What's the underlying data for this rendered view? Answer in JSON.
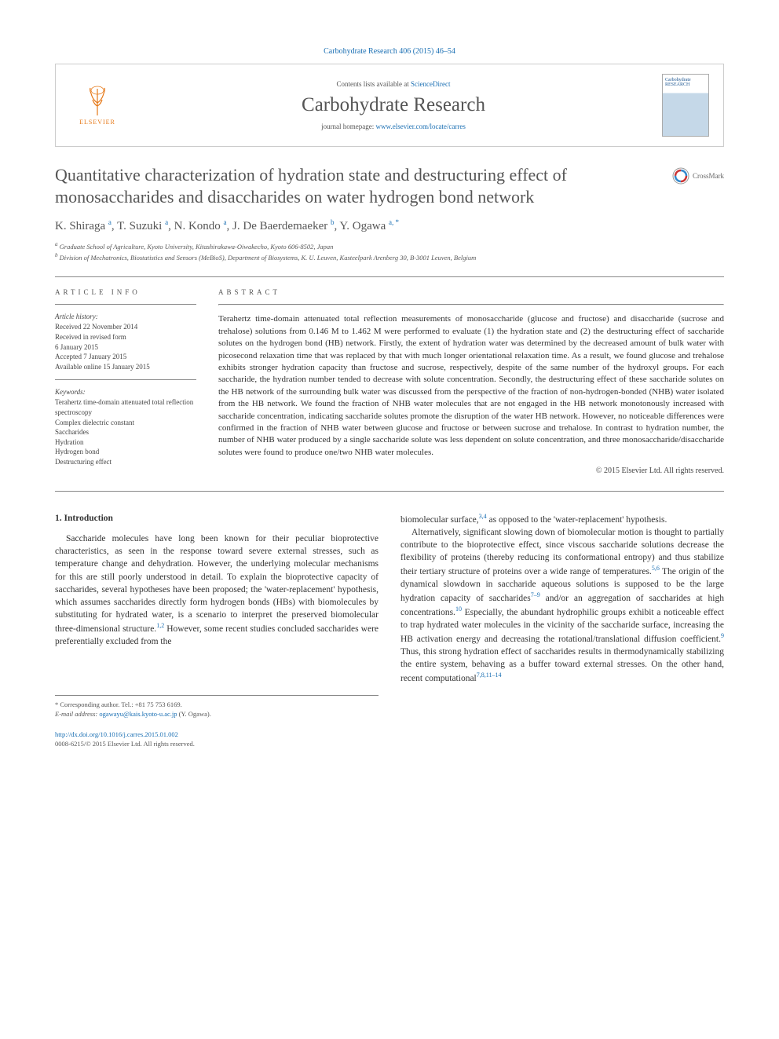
{
  "journalRef": "Carbohydrate Research 406 (2015) 46–54",
  "header": {
    "contentsPrefix": "Contents lists available at ",
    "contentsLink": "ScienceDirect",
    "journalName": "Carbohydrate Research",
    "homepagePrefix": "journal homepage: ",
    "homepageUrl": "www.elsevier.com/locate/carres",
    "publisherName": "ELSEVIER",
    "coverTitle": "Carbohydrate RESEARCH"
  },
  "crossmarkLabel": "CrossMark",
  "title": "Quantitative characterization of hydration state and destructuring effect of monosaccharides and disaccharides on water hydrogen bond network",
  "authorsHtml": "K. Shiraga <sup>a</sup>, T. Suzuki <sup>a</sup>, N. Kondo <sup>a</sup>, J. De Baerdemaeker <sup>b</sup>, Y. Ogawa <sup>a, *</sup>",
  "affiliations": [
    "a Graduate School of Agriculture, Kyoto University, Kitashirakawa-Oiwakecho, Kyoto 606-8502, Japan",
    "b Division of Mechatronics, Biostatistics and Sensors (MeBioS), Department of Biosystems, K. U. Leuven, Kasteelpark Arenberg 30, B-3001 Leuven, Belgium"
  ],
  "articleInfo": {
    "heading": "ARTICLE INFO",
    "historyLabel": "Article history:",
    "history": "Received 22 November 2014\nReceived in revised form\n6 January 2015\nAccepted 7 January 2015\nAvailable online 15 January 2015",
    "keywordsLabel": "Keywords:",
    "keywords": [
      "Terahertz time-domain attenuated total reflection spectroscopy",
      "Complex dielectric constant",
      "Saccharides",
      "Hydration",
      "Hydrogen bond",
      "Destructuring effect"
    ]
  },
  "abstract": {
    "heading": "ABSTRACT",
    "text": "Terahertz time-domain attenuated total reflection measurements of monosaccharide (glucose and fructose) and disaccharide (sucrose and trehalose) solutions from 0.146 M to 1.462 M were performed to evaluate (1) the hydration state and (2) the destructuring effect of saccharide solutes on the hydrogen bond (HB) network. Firstly, the extent of hydration water was determined by the decreased amount of bulk water with picosecond relaxation time that was replaced by that with much longer orientational relaxation time. As a result, we found glucose and trehalose exhibits stronger hydration capacity than fructose and sucrose, respectively, despite of the same number of the hydroxyl groups. For each saccharide, the hydration number tended to decrease with solute concentration. Secondly, the destructuring effect of these saccharide solutes on the HB network of the surrounding bulk water was discussed from the perspective of the fraction of non-hydrogen-bonded (NHB) water isolated from the HB network. We found the fraction of NHB water molecules that are not engaged in the HB network monotonously increased with saccharide concentration, indicating saccharide solutes promote the disruption of the water HB network. However, no noticeable differences were confirmed in the fraction of NHB water between glucose and fructose or between sucrose and trehalose. In contrast to hydration number, the number of NHB water produced by a single saccharide solute was less dependent on solute concentration, and three monosaccharide/disaccharide solutes were found to produce one/two NHB water molecules.",
    "copyright": "© 2015 Elsevier Ltd. All rights reserved."
  },
  "body": {
    "sectionHead": "1. Introduction",
    "col1p1": "Saccharide molecules have long been known for their peculiar bioprotective characteristics, as seen in the response toward severe external stresses, such as temperature change and dehydration. However, the underlying molecular mechanisms for this are still poorly understood in detail. To explain the bioprotective capacity of saccharides, several hypotheses have been proposed; the 'water-replacement' hypothesis, which assumes saccharides directly form hydrogen bonds (HBs) with biomolecules by substituting for hydrated water, is a scenario to interpret the preserved biomolecular three-dimensional structure.",
    "col1p1refs": "1,2",
    "col1p1b": " However, some recent studies concluded saccharides were preferentially excluded from the",
    "col2p1a": "biomolecular surface,",
    "col2p1refs": "3,4",
    "col2p1b": " as opposed to the 'water-replacement' hypothesis.",
    "col2p2a": "Alternatively, significant slowing down of biomolecular motion is thought to partially contribute to the bioprotective effect, since viscous saccharide solutions decrease the flexibility of proteins (thereby reducing its conformational entropy) and thus stabilize their tertiary structure of proteins over a wide range of temperatures.",
    "col2p2r1": "5,6",
    "col2p2b": " The origin of the dynamical slowdown in saccharide aqueous solutions is supposed to be the large hydration capacity of saccharides",
    "col2p2r2": "7–9",
    "col2p2c": " and/or an aggregation of saccharides at high concentrations.",
    "col2p2r3": "10",
    "col2p2d": " Especially, the abundant hydrophilic groups exhibit a noticeable effect to trap hydrated water molecules in the vicinity of the saccharide surface, increasing the HB activation energy and decreasing the rotational/translational diffusion coefficient.",
    "col2p2r4": "9",
    "col2p2e": " Thus, this strong hydration effect of saccharides results in thermodynamically stabilizing the entire system, behaving as a buffer toward external stresses. On the other hand, recent computational",
    "col2p2r5": "7,8,11–14"
  },
  "footer": {
    "corrLabel": "* Corresponding author. Tel.: +81 75 753 6169.",
    "emailLabel": "E-mail address: ",
    "email": "ogawayu@kais.kyoto-u.ac.jp",
    "emailSuffix": " (Y. Ogawa).",
    "doi": "http://dx.doi.org/10.1016/j.carres.2015.01.002",
    "issn": "0008-6215/© 2015 Elsevier Ltd. All rights reserved."
  },
  "colors": {
    "link": "#1a6fb3",
    "elsevierOrange": "#e67817",
    "bodyText": "#333333",
    "softText": "#565656"
  }
}
